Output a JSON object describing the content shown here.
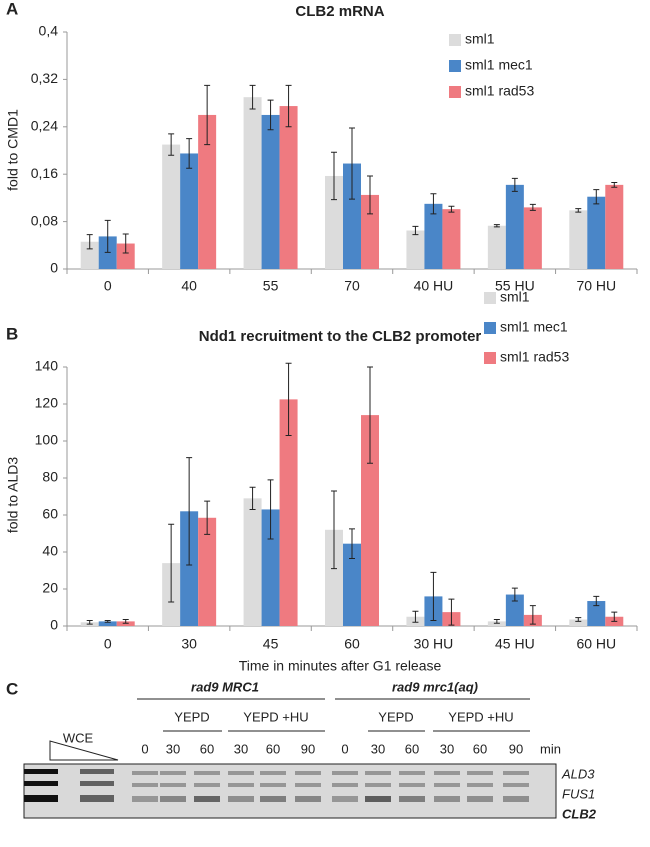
{
  "chart_data": [
    {
      "type": "bar",
      "panel_label": "A",
      "title": "CLB2 mRNA",
      "y_label": "fold to CMD1",
      "categories": [
        "0",
        "40",
        "55",
        "70",
        "40 HU",
        "55 HU",
        "70 HU"
      ],
      "series": [
        {
          "name": "sml1",
          "color": "#dcdcdc",
          "values": [
            0.046,
            0.21,
            0.29,
            0.157,
            0.065,
            0.073,
            0.099
          ],
          "errors": [
            0.012,
            0.018,
            0.02,
            0.04,
            0.007,
            0.002,
            0.003
          ]
        },
        {
          "name": "sml1 mec1",
          "color": "#4a86c8",
          "values": [
            0.055,
            0.195,
            0.26,
            0.178,
            0.11,
            0.142,
            0.122
          ],
          "errors": [
            0.027,
            0.025,
            0.025,
            0.06,
            0.017,
            0.011,
            0.012
          ]
        },
        {
          "name": "sml1 rad53",
          "color": "#ef7a80",
          "values": [
            0.043,
            0.26,
            0.275,
            0.125,
            0.101,
            0.104,
            0.142
          ],
          "errors": [
            0.016,
            0.05,
            0.035,
            0.032,
            0.005,
            0.005,
            0.004
          ]
        }
      ],
      "ylim": [
        0,
        0.4
      ],
      "yticks": [
        0,
        {
          "value": 0.08,
          "label": "0,08"
        },
        {
          "value": 0.16,
          "label": "0,16"
        },
        {
          "value": 0.24,
          "label": "0,24"
        },
        {
          "value": 0.32,
          "label": "0,32"
        },
        {
          "value": 0.4,
          "label": "0,4"
        }
      ],
      "grid": false,
      "legend": "upper-right"
    },
    {
      "type": "bar",
      "panel_label": "B",
      "title": "Ndd1 recruitment to the CLB2 promoter",
      "y_label": "fold to ALD3",
      "x_label": "Time in minutes after G1 release",
      "categories": [
        "0",
        "30",
        "45",
        "60",
        "30 HU",
        "45 HU",
        "60 HU"
      ],
      "series": [
        {
          "name": "sml1",
          "color": "#dcdcdc",
          "values": [
            2,
            34,
            69,
            52,
            5,
            2.5,
            3.5
          ],
          "errors": [
            1,
            21,
            6,
            21,
            3,
            1,
            1
          ]
        },
        {
          "name": "sml1 mec1",
          "color": "#4a86c8",
          "values": [
            2.5,
            62,
            63,
            44.5,
            16,
            17,
            13.5
          ],
          "errors": [
            0.5,
            29,
            16,
            8,
            13,
            3.5,
            2.5
          ]
        },
        {
          "name": "sml1 rad53",
          "color": "#ef7a80",
          "values": [
            2.5,
            58.5,
            122.5,
            114,
            7.5,
            6,
            5
          ],
          "errors": [
            1,
            9,
            19.5,
            26,
            7,
            5,
            2.5
          ]
        }
      ],
      "ylim": [
        0,
        140
      ],
      "yticks": [
        0,
        20,
        40,
        60,
        80,
        100,
        120,
        140
      ],
      "grid": false,
      "legend": "upper-right"
    }
  ],
  "gel": {
    "panel_label": "C",
    "groups": [
      "rad9  MRC1",
      "rad9  mrc1(aq)"
    ],
    "conditions": [
      "YEPD",
      "YEPD +HU",
      "YEPD",
      "YEPD +HU"
    ],
    "wce": "WCE",
    "lanes": [
      "0",
      "30",
      "60",
      "30",
      "60",
      "90",
      "0",
      "30",
      "60",
      "30",
      "60",
      "90"
    ],
    "unit": "min",
    "genes": [
      "ALD3",
      "FUS1",
      "CLB2"
    ]
  }
}
